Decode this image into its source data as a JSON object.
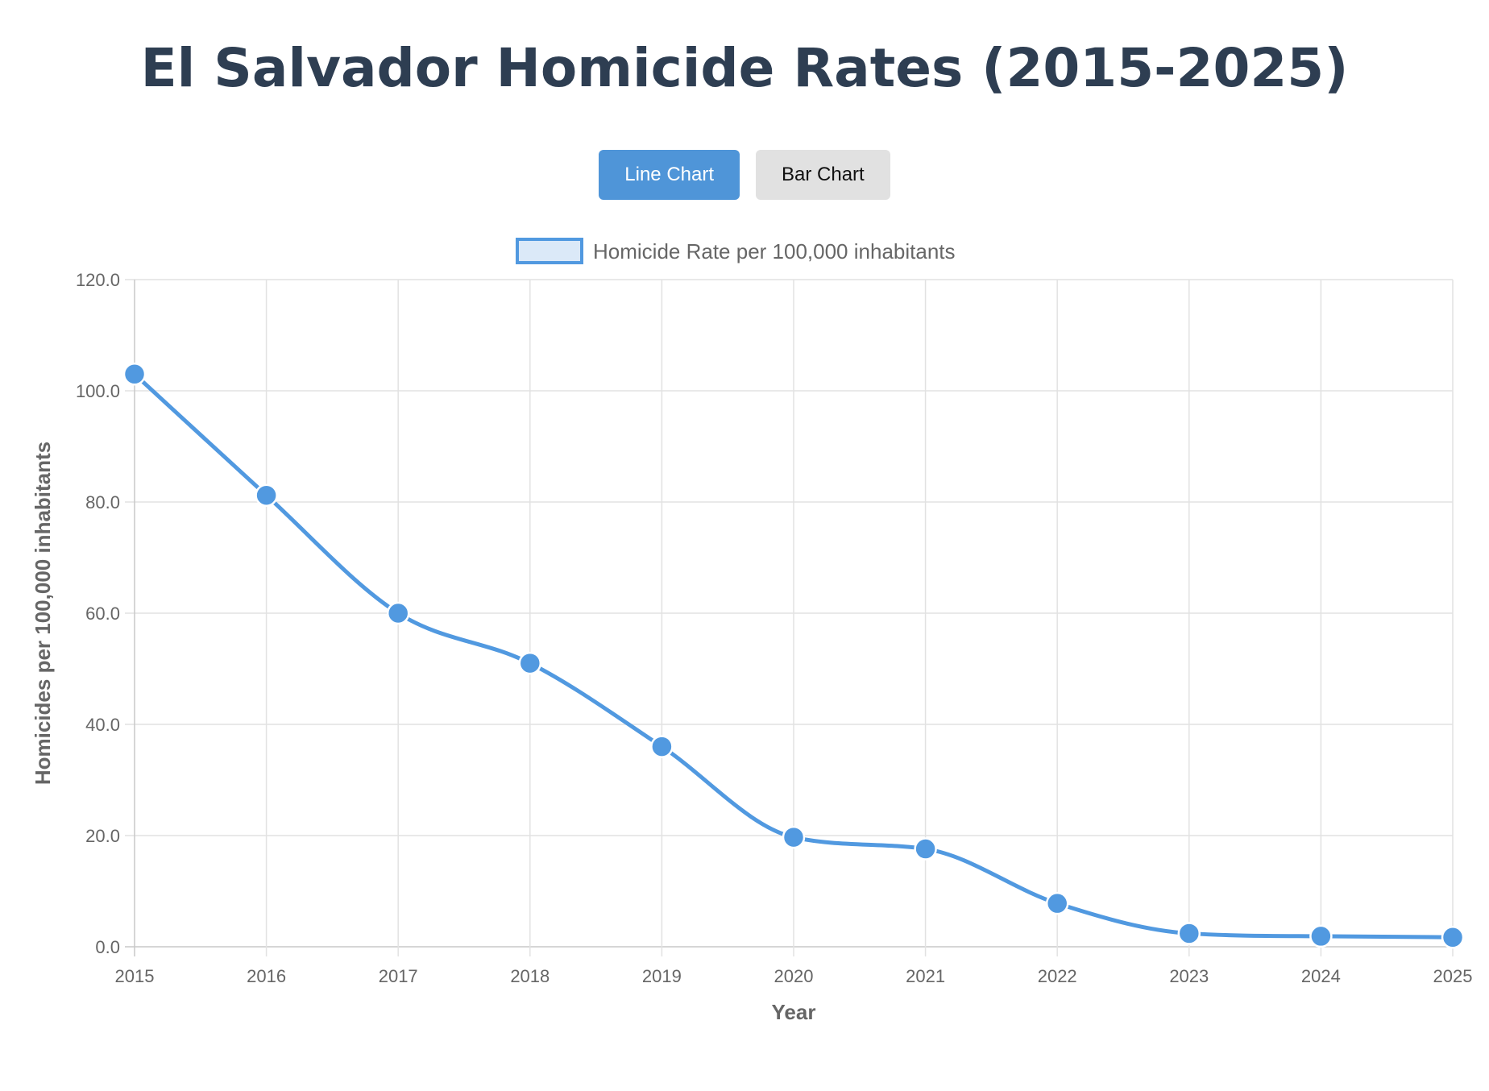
{
  "header": {
    "title": "El Salvador Homicide Rates (2015-2025)"
  },
  "toggle": {
    "line_label": "Line Chart",
    "bar_label": "Bar Chart",
    "active": "line"
  },
  "colors": {
    "title": "#2e3e52",
    "accent": "#4f95d8",
    "line": "#5199e0",
    "legend_fill": "#dbe9f8",
    "grid": "#e2e2e2",
    "axis_text": "#666666"
  },
  "chart_data": {
    "type": "line",
    "title": "",
    "x": [
      "2015",
      "2016",
      "2017",
      "2018",
      "2019",
      "2020",
      "2021",
      "2022",
      "2023",
      "2024",
      "2025"
    ],
    "series": [
      {
        "name": "Homicide Rate per 100,000 inhabitants",
        "values": [
          103.0,
          81.2,
          60.0,
          51.0,
          36.0,
          19.7,
          17.6,
          7.8,
          2.4,
          1.9,
          1.7
        ]
      }
    ],
    "xlabel": "Year",
    "ylabel": "Homicides per 100,000 inhabitants",
    "ylim": [
      0,
      120
    ],
    "yticks": [
      "0.0",
      "20.0",
      "40.0",
      "60.0",
      "80.0",
      "100.0",
      "120.0"
    ],
    "grid": true,
    "legend": "top-center"
  }
}
